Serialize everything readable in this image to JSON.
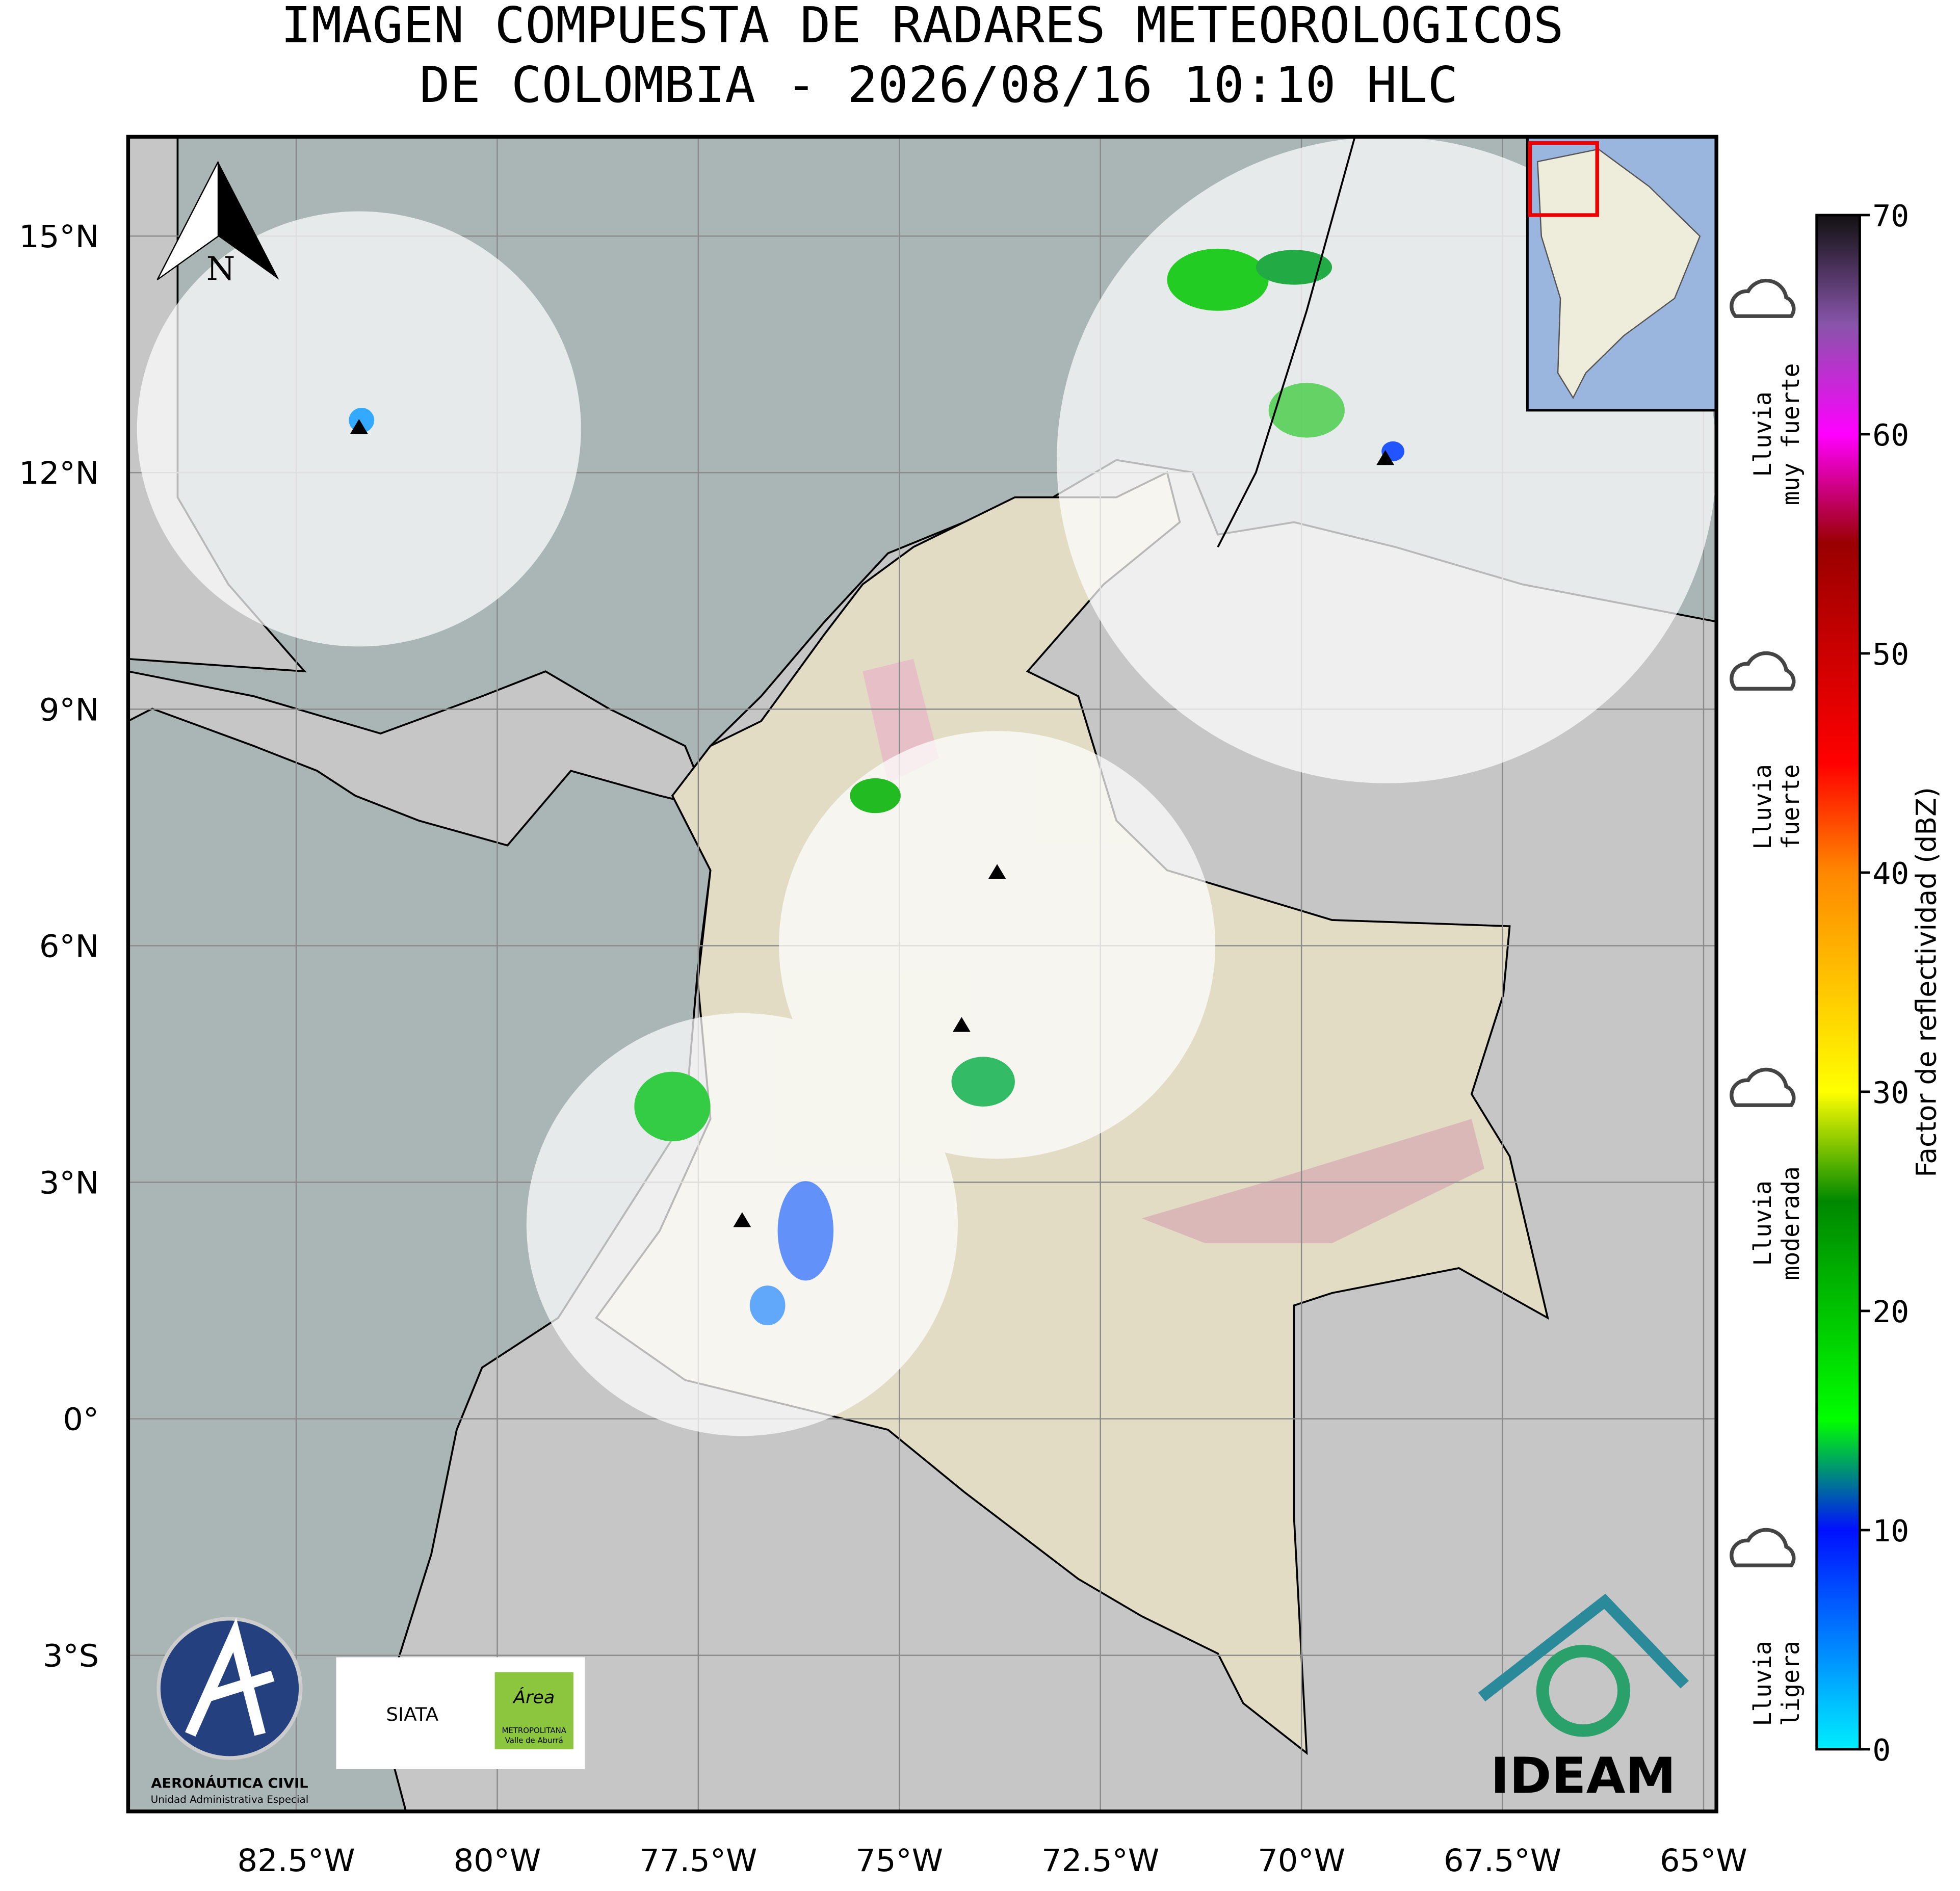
{
  "title": [
    "IMAGEN COMPUESTA DE RADARES METEOROLOGICOS",
    "DE COLOMBIA - 2026/08/16 10:10 HLC"
  ],
  "map": {
    "lonlim": [
      -84.59,
      -64.84
    ],
    "latlim": [
      -4.98,
      16.26
    ],
    "lonticks": [
      {
        "value": -82.5,
        "label": "82.5°W"
      },
      {
        "value": -80,
        "label": "80°W"
      },
      {
        "value": -77.5,
        "label": "77.5°W"
      },
      {
        "value": -75,
        "label": "75°W"
      },
      {
        "value": -72.5,
        "label": "72.5°W"
      },
      {
        "value": -70,
        "label": "70°W"
      },
      {
        "value": -67.5,
        "label": "67.5°W"
      },
      {
        "value": -65,
        "label": "65°W"
      }
    ],
    "latticks": [
      {
        "value": 15,
        "label": "15°N"
      },
      {
        "value": 12,
        "label": "12°N"
      },
      {
        "value": 9,
        "label": "9°N"
      },
      {
        "value": 6,
        "label": "6°N"
      },
      {
        "value": 3,
        "label": "3°N"
      },
      {
        "value": 0,
        "label": "0°"
      },
      {
        "value": -3,
        "label": "3°S"
      }
    ],
    "north": "N"
  },
  "colorbar": {
    "label": "Factor de reflectividad (dBZ)",
    "lim": [
      0,
      70
    ],
    "ticks": [
      0,
      10,
      20,
      30,
      40,
      50,
      60,
      70
    ],
    "stops": [
      {
        "value": 0,
        "color": "#00eeff"
      },
      {
        "value": 10,
        "color": "#0010ff"
      },
      {
        "value": 15,
        "color": "#00ff00"
      },
      {
        "value": 25,
        "color": "#008800"
      },
      {
        "value": 30,
        "color": "#ffff00"
      },
      {
        "value": 40,
        "color": "#ff8800"
      },
      {
        "value": 45,
        "color": "#ff0000"
      },
      {
        "value": 55,
        "color": "#990000"
      },
      {
        "value": 60,
        "color": "#ff00ff"
      },
      {
        "value": 65,
        "color": "#8855aa"
      },
      {
        "value": 70,
        "color": "#111111"
      }
    ]
  },
  "legend": [
    {
      "lines": [
        "Lluvia",
        "muy fuerte"
      ],
      "value": 60
    },
    {
      "lines": [
        "Lluvia",
        "fuerte"
      ],
      "value": 43
    },
    {
      "lines": [
        "Lluvia",
        "moderada"
      ],
      "value": 24
    },
    {
      "lines": [
        "Lluvia",
        "ligera"
      ],
      "value": 3
    }
  ],
  "logos": {
    "aero": [
      "AERONÁUTICA CIVIL",
      "Unidad Administrativa Especial"
    ],
    "siata": "SIATA",
    "area": [
      "Área",
      "METROPOLITANA",
      "Valle de Aburrá"
    ],
    "ideam": "IDEAM"
  }
}
